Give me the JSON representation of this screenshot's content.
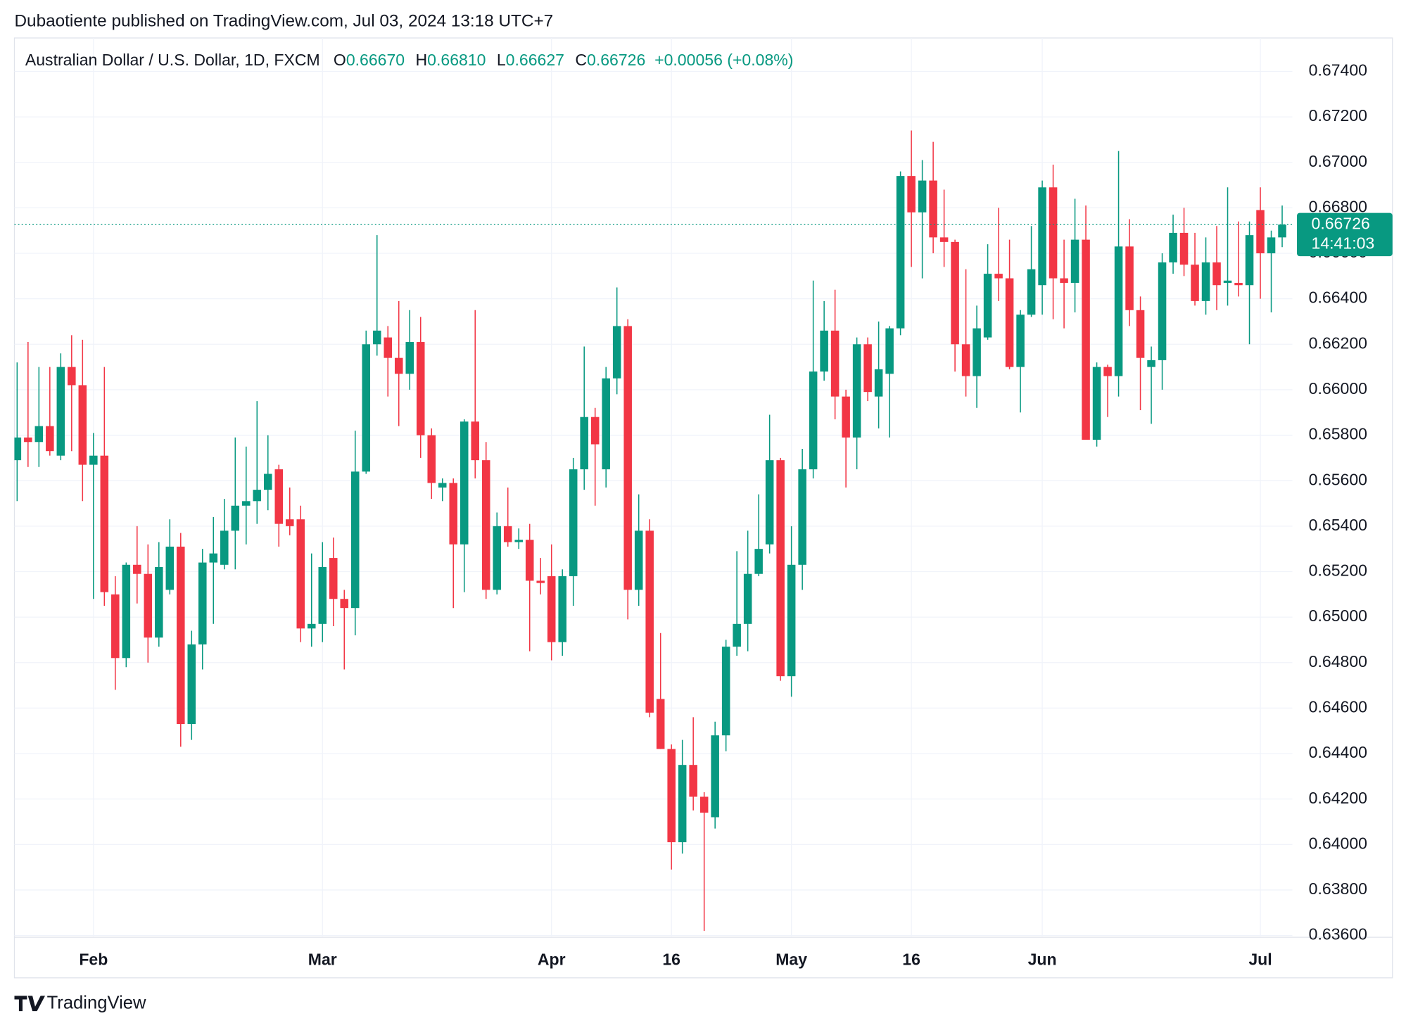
{
  "published": "Dubaotiente published on TradingView.com, Jul 03, 2024 13:18 UTC+7",
  "footer": "TradingView",
  "chart_data": {
    "type": "candlestick",
    "title": "Australian Dollar / U.S. Dollar, 1D, FXCM",
    "ohlc_header": [
      {
        "label": "O",
        "value": "0.66670"
      },
      {
        "label": "H",
        "value": "0.66810"
      },
      {
        "label": "L",
        "value": "0.66627"
      },
      {
        "label": "C",
        "value": "0.66726"
      }
    ],
    "change": "+0.00056 (+0.08%)",
    "last_price_label": "0.66726",
    "countdown": "14:41:03",
    "up_color": "#089981",
    "down_color": "#f23645",
    "grid": true,
    "ylim": [
      0.63592,
      0.67547
    ],
    "yticks": [
      {
        "value": 0.636,
        "label": "0.63600"
      },
      {
        "value": 0.638,
        "label": "0.63800"
      },
      {
        "value": 0.64,
        "label": "0.64000"
      },
      {
        "value": 0.642,
        "label": "0.64200"
      },
      {
        "value": 0.644,
        "label": "0.64400"
      },
      {
        "value": 0.646,
        "label": "0.64600"
      },
      {
        "value": 0.648,
        "label": "0.64800"
      },
      {
        "value": 0.65,
        "label": "0.65000"
      },
      {
        "value": 0.652,
        "label": "0.65200"
      },
      {
        "value": 0.654,
        "label": "0.65400"
      },
      {
        "value": 0.656,
        "label": "0.65600"
      },
      {
        "value": 0.658,
        "label": "0.65800"
      },
      {
        "value": 0.66,
        "label": "0.66000"
      },
      {
        "value": 0.662,
        "label": "0.66200"
      },
      {
        "value": 0.664,
        "label": "0.66400"
      },
      {
        "value": 0.666,
        "label": "0.66600"
      },
      {
        "value": 0.668,
        "label": "0.66800"
      },
      {
        "value": 0.67,
        "label": "0.67000"
      },
      {
        "value": 0.672,
        "label": "0.67200"
      },
      {
        "value": 0.674,
        "label": "0.67400"
      }
    ],
    "categories": [
      null,
      null,
      null,
      null,
      null,
      null,
      null,
      "Feb",
      null,
      null,
      null,
      null,
      null,
      null,
      null,
      null,
      null,
      null,
      null,
      null,
      null,
      null,
      null,
      null,
      null,
      null,
      null,
      null,
      "Mar",
      null,
      null,
      null,
      null,
      null,
      null,
      null,
      null,
      null,
      null,
      null,
      null,
      null,
      null,
      null,
      null,
      null,
      null,
      null,
      null,
      "Apr",
      null,
      null,
      null,
      null,
      null,
      null,
      null,
      null,
      null,
      null,
      "16",
      null,
      null,
      null,
      null,
      null,
      null,
      null,
      null,
      null,
      null,
      "May",
      null,
      null,
      null,
      null,
      null,
      null,
      null,
      null,
      null,
      null,
      "16",
      null,
      null,
      null,
      null,
      null,
      null,
      null,
      null,
      null,
      null,
      null,
      "Jun",
      null,
      null,
      null,
      null,
      null,
      null,
      null,
      null,
      null,
      null,
      null,
      null,
      null,
      null,
      null,
      null,
      null,
      null,
      null,
      "Jul",
      null,
      null
    ],
    "open": [
      0.6569,
      0.6579,
      0.6577,
      0.6584,
      0.6571,
      0.661,
      0.6602,
      0.6567,
      0.6571,
      0.651,
      0.6482,
      0.6523,
      0.6519,
      0.6491,
      0.6512,
      0.6531,
      0.6453,
      0.6488,
      0.6524,
      0.6523,
      0.6538,
      0.6549,
      0.6551,
      0.6556,
      0.6565,
      0.6543,
      0.6543,
      0.6495,
      0.6497,
      0.6526,
      0.6508,
      0.6504,
      0.6564,
      0.662,
      0.6623,
      0.6614,
      0.6607,
      0.6621,
      0.658,
      0.6557,
      0.6559,
      0.6532,
      0.6586,
      0.6569,
      0.6512,
      0.654,
      0.6533,
      0.6534,
      0.6516,
      0.6518,
      0.6489,
      0.6518,
      0.6565,
      0.6588,
      0.6565,
      0.6605,
      0.6628,
      0.6512,
      0.6538,
      0.6464,
      0.6442,
      0.6401,
      0.6435,
      0.6421,
      0.6412,
      0.6448,
      0.6487,
      0.6497,
      0.6519,
      0.6532,
      0.6569,
      0.6474,
      0.6523,
      0.6565,
      0.6608,
      0.6626,
      0.6597,
      0.6579,
      0.662,
      0.6597,
      0.6607,
      0.6627,
      0.6694,
      0.6678,
      0.6692,
      0.6667,
      0.6665,
      0.662,
      0.6606,
      0.6623,
      0.6651,
      0.6649,
      0.661,
      0.6633,
      0.6646,
      0.6689,
      0.6649,
      0.6647,
      0.6666,
      0.6578,
      0.661,
      0.6606,
      0.6663,
      0.6635,
      0.661,
      0.6613,
      0.6656,
      0.6669,
      0.6655,
      0.6639,
      0.6656,
      0.6647,
      0.6647,
      0.6646,
      0.6679,
      0.666,
      0.6667
    ],
    "high": [
      0.6612,
      0.6621,
      0.661,
      0.661,
      0.6616,
      0.6624,
      0.6622,
      0.6581,
      0.661,
      0.6518,
      0.6524,
      0.654,
      0.6532,
      0.6533,
      0.6543,
      0.6537,
      0.6494,
      0.653,
      0.6544,
      0.6552,
      0.6579,
      0.6575,
      0.6595,
      0.658,
      0.6567,
      0.6557,
      0.6549,
      0.6528,
      0.6533,
      0.6535,
      0.6512,
      0.6582,
      0.6626,
      0.6668,
      0.6628,
      0.6639,
      0.6635,
      0.6632,
      0.6583,
      0.6561,
      0.6561,
      0.6587,
      0.6635,
      0.6577,
      0.6546,
      0.6557,
      0.6539,
      0.6541,
      0.6526,
      0.6532,
      0.6521,
      0.657,
      0.6619,
      0.6592,
      0.661,
      0.6645,
      0.6631,
      0.6554,
      0.6543,
      0.6493,
      0.6444,
      0.6446,
      0.6456,
      0.6423,
      0.6454,
      0.649,
      0.6529,
      0.6538,
      0.6554,
      0.6589,
      0.657,
      0.654,
      0.6574,
      0.6648,
      0.6639,
      0.6644,
      0.66,
      0.6623,
      0.6623,
      0.663,
      0.6628,
      0.6696,
      0.6714,
      0.6701,
      0.6709,
      0.6688,
      0.6666,
      0.6653,
      0.6637,
      0.6664,
      0.668,
      0.6666,
      0.6635,
      0.6672,
      0.6692,
      0.6699,
      0.6666,
      0.6684,
      0.6681,
      0.6612,
      0.6611,
      0.6705,
      0.6675,
      0.6641,
      0.6619,
      0.666,
      0.6677,
      0.668,
      0.6669,
      0.6667,
      0.6672,
      0.6689,
      0.6674,
      0.6674,
      0.6689,
      0.667,
      0.6681
    ],
    "low": [
      0.6551,
      0.6566,
      0.6566,
      0.6571,
      0.6569,
      0.6573,
      0.6551,
      0.6508,
      0.6505,
      0.6468,
      0.6478,
      0.6506,
      0.648,
      0.6487,
      0.651,
      0.6443,
      0.6446,
      0.6477,
      0.6497,
      0.6521,
      0.6521,
      0.6532,
      0.6541,
      0.6547,
      0.6531,
      0.6536,
      0.6489,
      0.6487,
      0.6489,
      0.6496,
      0.6477,
      0.6492,
      0.6563,
      0.6615,
      0.6597,
      0.6584,
      0.66,
      0.657,
      0.6552,
      0.6551,
      0.6504,
      0.6511,
      0.6561,
      0.6508,
      0.651,
      0.6531,
      0.653,
      0.6485,
      0.651,
      0.6481,
      0.6483,
      0.6505,
      0.6556,
      0.6549,
      0.6557,
      0.6598,
      0.6499,
      0.6505,
      0.6456,
      0.6442,
      0.6389,
      0.6396,
      0.6415,
      0.6362,
      0.6407,
      0.6441,
      0.6483,
      0.6485,
      0.6518,
      0.6528,
      0.6472,
      0.6465,
      0.6512,
      0.6561,
      0.6604,
      0.6587,
      0.6557,
      0.6565,
      0.6595,
      0.6583,
      0.6579,
      0.6624,
      0.6654,
      0.6649,
      0.666,
      0.6654,
      0.6608,
      0.6597,
      0.6592,
      0.6622,
      0.6639,
      0.6609,
      0.659,
      0.6632,
      0.6633,
      0.6631,
      0.6627,
      0.6634,
      0.6578,
      0.6575,
      0.6588,
      0.6597,
      0.6628,
      0.6591,
      0.6585,
      0.66,
      0.6651,
      0.665,
      0.6637,
      0.6633,
      0.6635,
      0.6637,
      0.6641,
      0.662,
      0.664,
      0.6634,
      0.66627
    ],
    "close": [
      0.6579,
      0.6577,
      0.6584,
      0.6573,
      0.661,
      0.6602,
      0.6567,
      0.6571,
      0.6511,
      0.6482,
      0.6523,
      0.6519,
      0.6491,
      0.6522,
      0.6531,
      0.6453,
      0.6488,
      0.6524,
      0.6528,
      0.6538,
      0.6549,
      0.6551,
      0.6556,
      0.6563,
      0.6541,
      0.654,
      0.6495,
      0.6497,
      0.6522,
      0.6508,
      0.6504,
      0.6564,
      0.662,
      0.6626,
      0.6614,
      0.6607,
      0.6621,
      0.658,
      0.6559,
      0.6559,
      0.6532,
      0.6586,
      0.6569,
      0.6512,
      0.654,
      0.6533,
      0.6534,
      0.6516,
      0.6515,
      0.6489,
      0.6518,
      0.6565,
      0.6588,
      0.6576,
      0.6605,
      0.6628,
      0.6512,
      0.6538,
      0.6458,
      0.6442,
      0.6401,
      0.6435,
      0.6421,
      0.6414,
      0.6448,
      0.6487,
      0.6497,
      0.6519,
      0.653,
      0.6569,
      0.6474,
      0.6523,
      0.6565,
      0.6608,
      0.6626,
      0.6597,
      0.6579,
      0.662,
      0.6599,
      0.6609,
      0.6627,
      0.6694,
      0.6678,
      0.6692,
      0.6667,
      0.6665,
      0.662,
      0.6606,
      0.6627,
      0.6651,
      0.6649,
      0.661,
      0.6633,
      0.6653,
      0.6689,
      0.6649,
      0.6647,
      0.6666,
      0.6578,
      0.661,
      0.6606,
      0.6663,
      0.6635,
      0.6614,
      0.6613,
      0.6656,
      0.6669,
      0.6655,
      0.6639,
      0.6656,
      0.6646,
      0.6648,
      0.6646,
      0.6668,
      0.666,
      0.6667,
      0.66726
    ]
  }
}
